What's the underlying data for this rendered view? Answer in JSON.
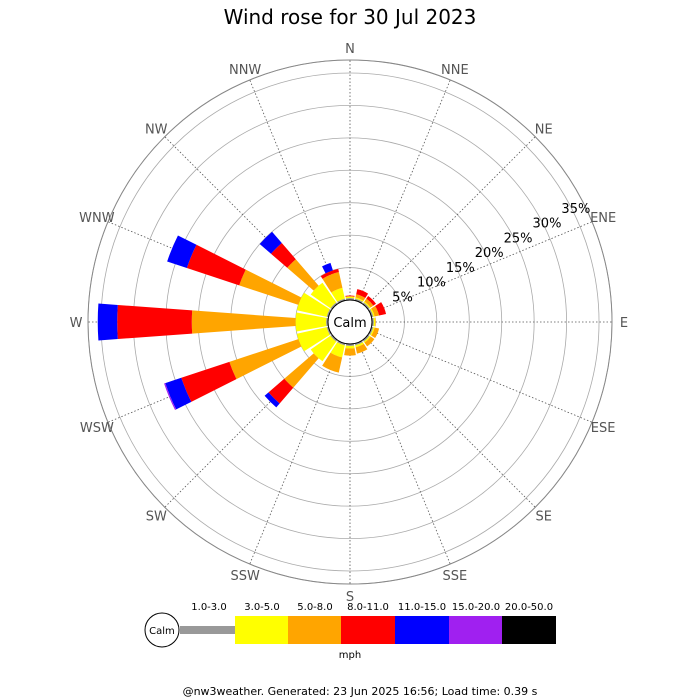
{
  "chart_data": {
    "type": "wind-rose",
    "title": "Wind rose for 30 Jul 2023",
    "directions": [
      "N",
      "NNE",
      "NE",
      "ENE",
      "E",
      "ESE",
      "SE",
      "SSE",
      "S",
      "SSW",
      "SW",
      "WSW",
      "W",
      "WNW",
      "NW",
      "NNW"
    ],
    "radial_ticks": [
      "5%",
      "10%",
      "15%",
      "20%",
      "25%",
      "30%",
      "35%"
    ],
    "radial_max_percent": 37,
    "center_label": "Calm",
    "unit": "mph",
    "speed_bins": [
      {
        "label": "1.0-3.0",
        "color": "#999999"
      },
      {
        "label": "3.0-5.0",
        "color": "#ffff00"
      },
      {
        "label": "5.0-8.0",
        "color": "#ffa500"
      },
      {
        "label": "8.0-11.0",
        "color": "#ff0000"
      },
      {
        "label": "11.0-15.0",
        "color": "#0000ff"
      },
      {
        "label": "15.0-20.0",
        "color": "#a020f0"
      },
      {
        "label": "20.0-50.0",
        "color": "#000000"
      }
    ],
    "series_cumulative_percent": [
      {
        "direction": "N",
        "values": [
          0.3,
          0.5,
          0.6,
          0.7,
          0.7,
          0.7,
          0.7
        ]
      },
      {
        "direction": "NNE",
        "values": [
          0.3,
          0.5,
          1.0,
          1.8,
          1.8,
          1.8,
          1.8
        ]
      },
      {
        "direction": "NE",
        "values": [
          0.3,
          0.5,
          1.0,
          1.5,
          1.5,
          1.5,
          1.5
        ]
      },
      {
        "direction": "ENE",
        "values": [
          0.3,
          0.5,
          1.2,
          2.3,
          2.3,
          2.3,
          2.3
        ]
      },
      {
        "direction": "E",
        "values": [
          0.3,
          0.5,
          0.6,
          0.6,
          0.6,
          0.6,
          0.6
        ]
      },
      {
        "direction": "ESE",
        "values": [
          0.3,
          0.5,
          1.2,
          1.2,
          1.2,
          1.2,
          1.2
        ]
      },
      {
        "direction": "SE",
        "values": [
          0.3,
          0.5,
          1.2,
          1.2,
          1.2,
          1.2,
          1.2
        ]
      },
      {
        "direction": "SSE",
        "values": [
          0.3,
          0.6,
          1.6,
          1.6,
          1.6,
          1.6,
          1.6
        ]
      },
      {
        "direction": "S",
        "values": [
          0.3,
          0.7,
          1.8,
          1.8,
          1.8,
          1.8,
          1.8
        ]
      },
      {
        "direction": "SSW",
        "values": [
          0.3,
          2.2,
          4.6,
          4.6,
          4.6,
          4.6,
          4.6
        ]
      },
      {
        "direction": "SW",
        "values": [
          0.3,
          4.0,
          10.0,
          13.2,
          14.0,
          14.0,
          14.0
        ]
      },
      {
        "direction": "WSW",
        "values": [
          0.3,
          5.0,
          16.2,
          24.0,
          26.6,
          26.8,
          26.8
        ]
      },
      {
        "direction": "W",
        "values": [
          0.3,
          5.0,
          21.0,
          32.5,
          35.5,
          35.5,
          35.5
        ]
      },
      {
        "direction": "WNW",
        "values": [
          0.3,
          5.0,
          14.6,
          23.1,
          26.3,
          26.3,
          26.3
        ]
      },
      {
        "direction": "NW",
        "values": [
          0.3,
          4.0,
          9.4,
          12.7,
          15.0,
          15.0,
          15.0
        ]
      },
      {
        "direction": "NNW",
        "values": [
          0.3,
          2.0,
          4.5,
          5.0,
          6.2,
          6.2,
          6.2
        ]
      }
    ],
    "grid": true,
    "legend_position": "bottom"
  },
  "footer": "@nw3weather. Generated: 23 Jun 2025 16:56; Load time: 0.39 s"
}
